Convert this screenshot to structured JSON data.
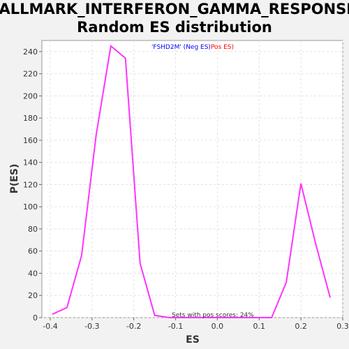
{
  "chart_data": {
    "type": "line",
    "title_line1": "HALLMARK_INTERFERON_GAMMA_RESPONSE:",
    "title_line2": "Random ES distribution",
    "xlabel": "ES",
    "ylabel": "P(ES)",
    "xlim": [
      -0.42,
      0.3
    ],
    "ylim": [
      0,
      250
    ],
    "xticks": [
      -0.4,
      -0.3,
      -0.2,
      -0.1,
      0.0,
      0.1,
      0.2,
      0.3
    ],
    "xtick_labels": [
      "-0.4",
      "-0.3",
      "-0.2",
      "-0.1",
      "0.0",
      "0.1",
      "0.2",
      "0.3"
    ],
    "yticks": [
      0,
      20,
      40,
      60,
      80,
      100,
      120,
      140,
      160,
      180,
      200,
      220,
      240
    ],
    "ytick_labels": [
      "0",
      "20",
      "40",
      "60",
      "80",
      "100",
      "120",
      "140",
      "160",
      "180",
      "200",
      "220",
      "240"
    ],
    "grid": true,
    "legend": {
      "position": "top-center",
      "entries": [
        {
          "text": "'FSHD2M' (Neg ES)",
          "color": "#0000ff"
        },
        {
          "text": "Pos ES)",
          "color": "#ff0000"
        }
      ]
    },
    "annotation": "Sets with pos scores: 24%",
    "series": [
      {
        "color": "#ff33ff",
        "x": [
          -0.395,
          -0.36,
          -0.325,
          -0.29,
          -0.255,
          -0.22,
          -0.185,
          -0.15,
          -0.115,
          -0.08,
          -0.045,
          -0.01,
          0.025,
          0.06,
          0.095,
          0.13,
          0.165,
          0.2,
          0.235,
          0.27
        ],
        "y": [
          3,
          9,
          56,
          165,
          245,
          234,
          49,
          2,
          0,
          0,
          0,
          0,
          0,
          0,
          0,
          0,
          32,
          121,
          67,
          18
        ]
      }
    ]
  }
}
